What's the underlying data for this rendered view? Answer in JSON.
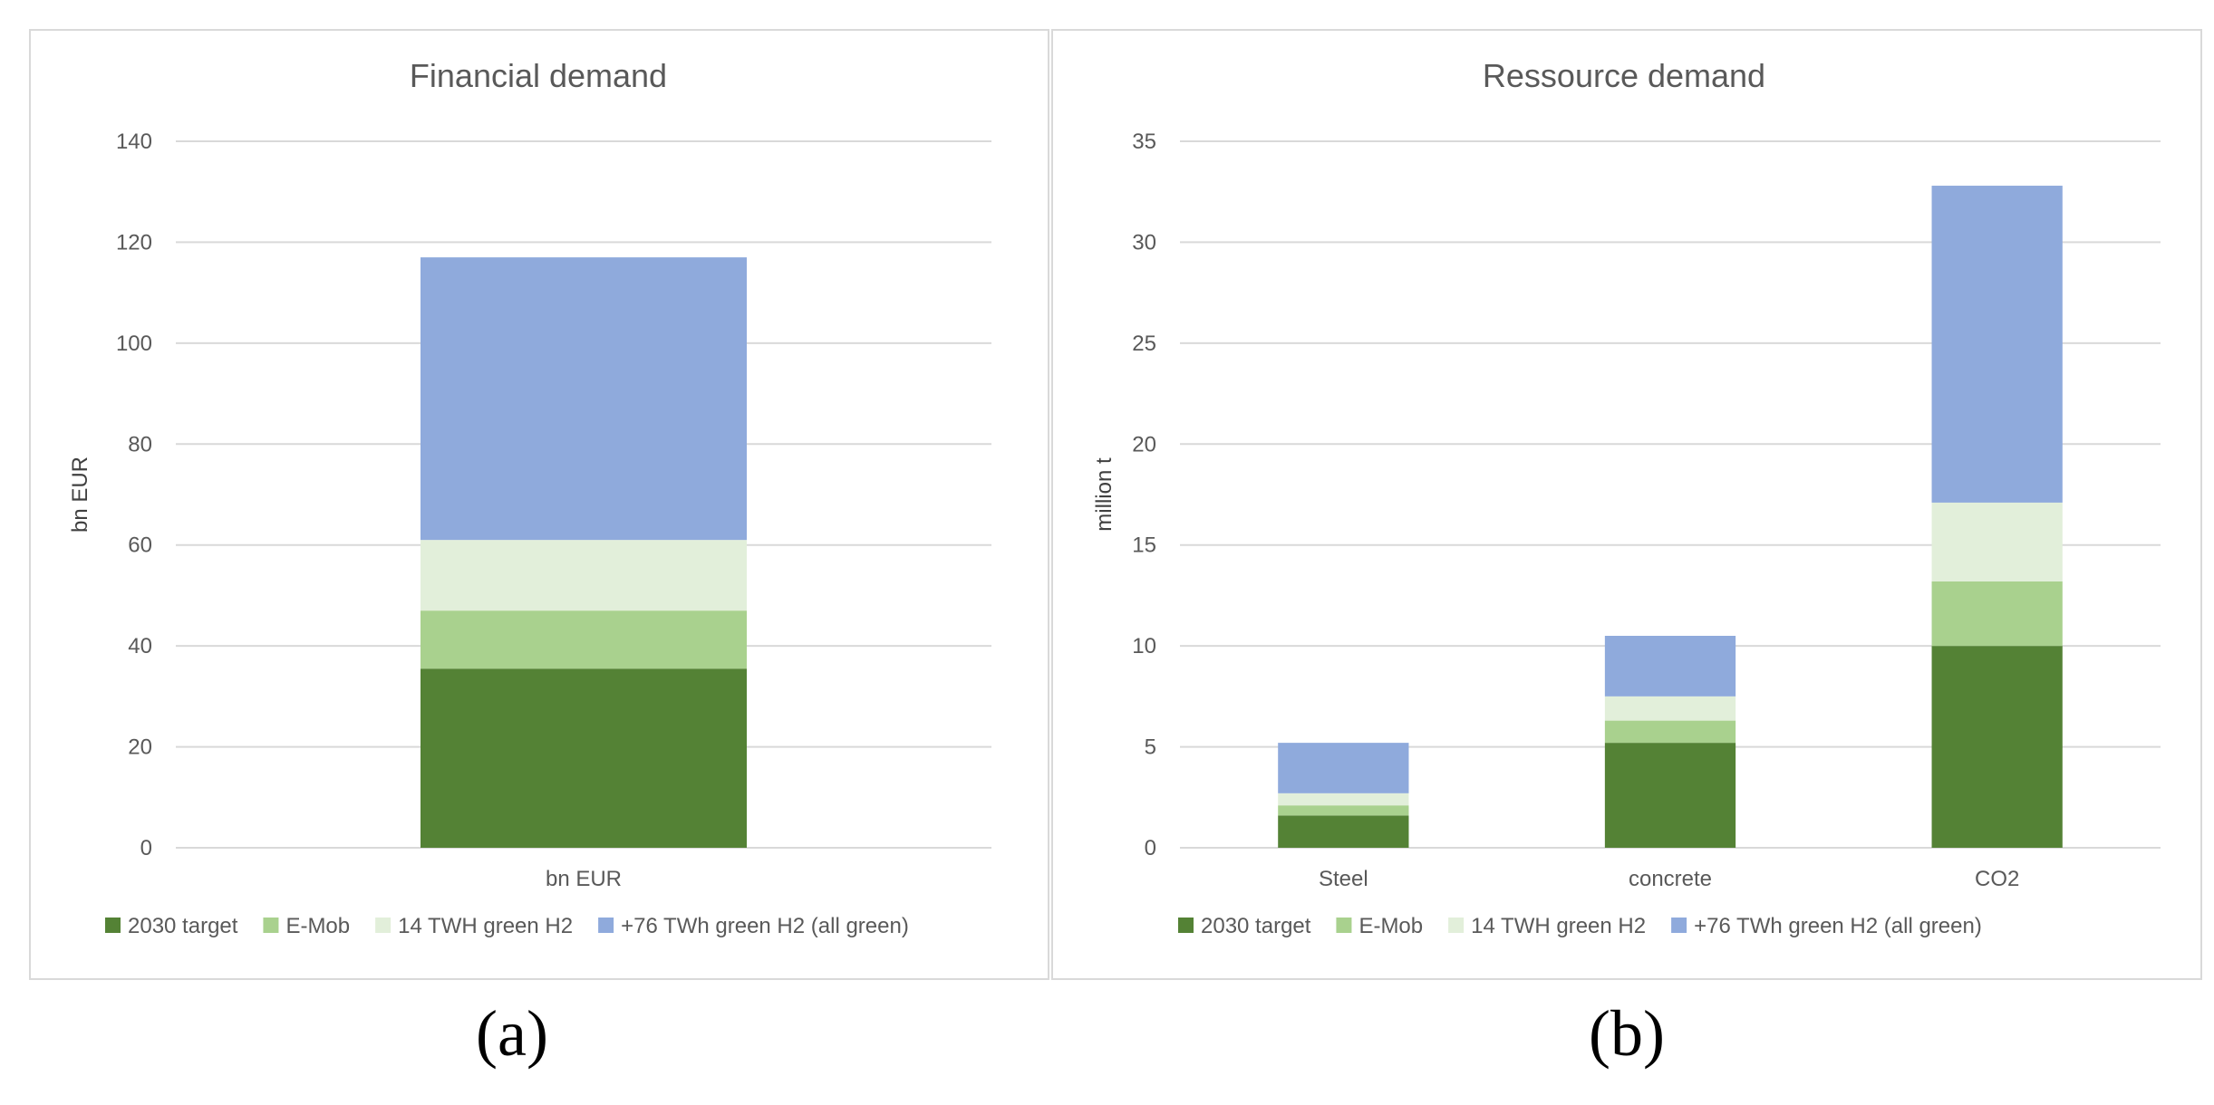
{
  "chart_data": [
    {
      "type": "bar",
      "stacked": true,
      "title": "Financial demand",
      "xlabel": "",
      "ylabel": "bn EUR",
      "ylim": [
        0,
        140
      ],
      "yticks": [
        0,
        20,
        40,
        60,
        80,
        100,
        120,
        140
      ],
      "categories": [
        "bn EUR"
      ],
      "series": [
        {
          "name": "2030 target",
          "color": "#548235",
          "values": [
            35.5
          ]
        },
        {
          "name": "E-Mob",
          "color": "#a9d18e",
          "values": [
            11.5
          ]
        },
        {
          "name": "14 TWH green H2",
          "color": "#e2efda",
          "values": [
            14
          ]
        },
        {
          "name": "+76 TWh green H2 (all green)",
          "color": "#8faadc",
          "values": [
            56
          ]
        }
      ],
      "grid": true,
      "legend": "bottom"
    },
    {
      "type": "bar",
      "stacked": true,
      "title": "Ressource demand",
      "xlabel": "",
      "ylabel": "million t",
      "ylim": [
        0,
        35
      ],
      "yticks": [
        0,
        5,
        10,
        15,
        20,
        25,
        30,
        35
      ],
      "categories": [
        "Steel",
        "concrete",
        "CO2"
      ],
      "series": [
        {
          "name": "2030 target",
          "color": "#548235",
          "values": [
            1.6,
            5.2,
            10.0
          ]
        },
        {
          "name": "E-Mob",
          "color": "#a9d18e",
          "values": [
            0.5,
            1.1,
            3.2
          ]
        },
        {
          "name": "14 TWH green H2",
          "color": "#e2efda",
          "values": [
            0.6,
            1.2,
            3.9
          ]
        },
        {
          "name": "+76 TWh green H2 (all green)",
          "color": "#8faadc",
          "values": [
            2.5,
            3.0,
            15.7
          ]
        }
      ],
      "grid": true,
      "legend": "bottom"
    }
  ],
  "panel_labels": {
    "a": "(a)",
    "b": "(b)"
  },
  "colors": {
    "grid": "#d9d9d9",
    "axis": "#d9d9d9",
    "text": "#595959"
  }
}
